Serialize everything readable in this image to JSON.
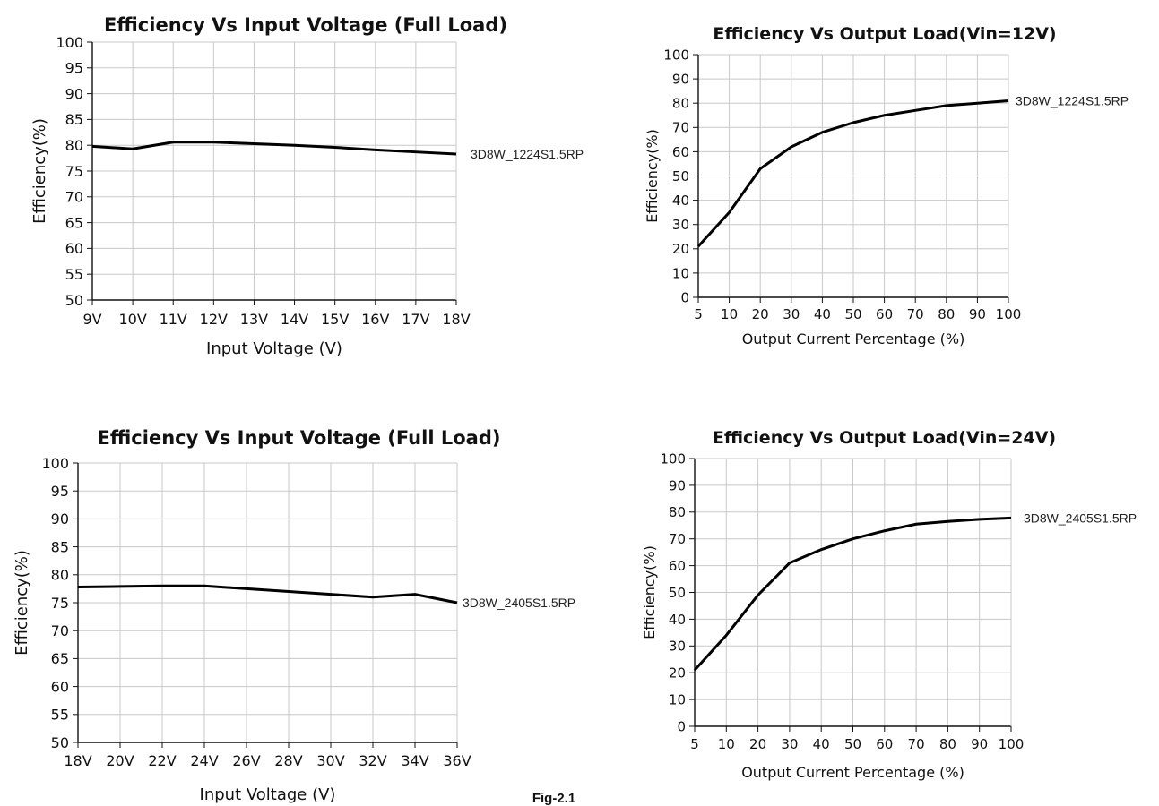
{
  "figure_caption": "Fig-2.1",
  "chart_data": [
    {
      "type": "line",
      "title": "Efficiency Vs Input Voltage (Full Load)",
      "xlabel": "Input Voltage (V)",
      "ylabel": "Efficiency(%)",
      "categories": [
        "9V",
        "10V",
        "11V",
        "12V",
        "13V",
        "14V",
        "15V",
        "16V",
        "17V",
        "18V"
      ],
      "ylim": [
        50,
        100
      ],
      "yticks": [
        50,
        55,
        60,
        65,
        70,
        75,
        80,
        85,
        90,
        95,
        100
      ],
      "grid": true,
      "series": [
        {
          "name": "3D8W_1224S1.5RP",
          "values": [
            79.8,
            79.3,
            80.6,
            80.6,
            80.3,
            80.0,
            79.6,
            79.1,
            78.7,
            78.3
          ]
        }
      ]
    },
    {
      "type": "line",
      "title": "Efficiency Vs Output Load(Vin=12V)",
      "xlabel": "Output Current Percentage (%)",
      "ylabel": "Efficiency(%)",
      "categories": [
        "5",
        "10",
        "20",
        "30",
        "40",
        "50",
        "60",
        "70",
        "80",
        "90",
        "100"
      ],
      "ylim": [
        0,
        100
      ],
      "yticks": [
        0,
        10,
        20,
        30,
        40,
        50,
        60,
        70,
        80,
        90,
        100
      ],
      "grid": true,
      "series": [
        {
          "name": "3D8W_1224S1.5RP",
          "values": [
            21,
            35,
            53,
            62,
            68,
            72,
            75,
            77,
            79,
            80,
            81
          ]
        }
      ]
    },
    {
      "type": "line",
      "title": "Efficiency Vs Input Voltage (Full Load)",
      "xlabel": "Input Voltage (V)",
      "ylabel": "Efficiency(%)",
      "categories": [
        "18V",
        "20V",
        "22V",
        "24V",
        "26V",
        "28V",
        "30V",
        "32V",
        "34V",
        "36V"
      ],
      "ylim": [
        50,
        100
      ],
      "yticks": [
        50,
        55,
        60,
        65,
        70,
        75,
        80,
        85,
        90,
        95,
        100
      ],
      "grid": true,
      "series": [
        {
          "name": "3D8W_2405S1.5RP",
          "values": [
            77.8,
            77.9,
            78.0,
            78.0,
            77.5,
            77.0,
            76.5,
            76.0,
            76.5,
            75.0
          ]
        }
      ]
    },
    {
      "type": "line",
      "title": "Efficiency Vs Output Load(Vin=24V)",
      "xlabel": "Output Current Percentage (%)",
      "ylabel": "Efficiency(%)",
      "categories": [
        "5",
        "10",
        "20",
        "30",
        "40",
        "50",
        "60",
        "70",
        "80",
        "90",
        "100"
      ],
      "ylim": [
        0,
        100
      ],
      "yticks": [
        0,
        10,
        20,
        30,
        40,
        50,
        60,
        70,
        80,
        90,
        100
      ],
      "grid": true,
      "series": [
        {
          "name": "3D8W_2405S1.5RP",
          "values": [
            21,
            34,
            49,
            61,
            66,
            70,
            73,
            75.5,
            76.5,
            77.3,
            77.8
          ]
        }
      ]
    }
  ]
}
